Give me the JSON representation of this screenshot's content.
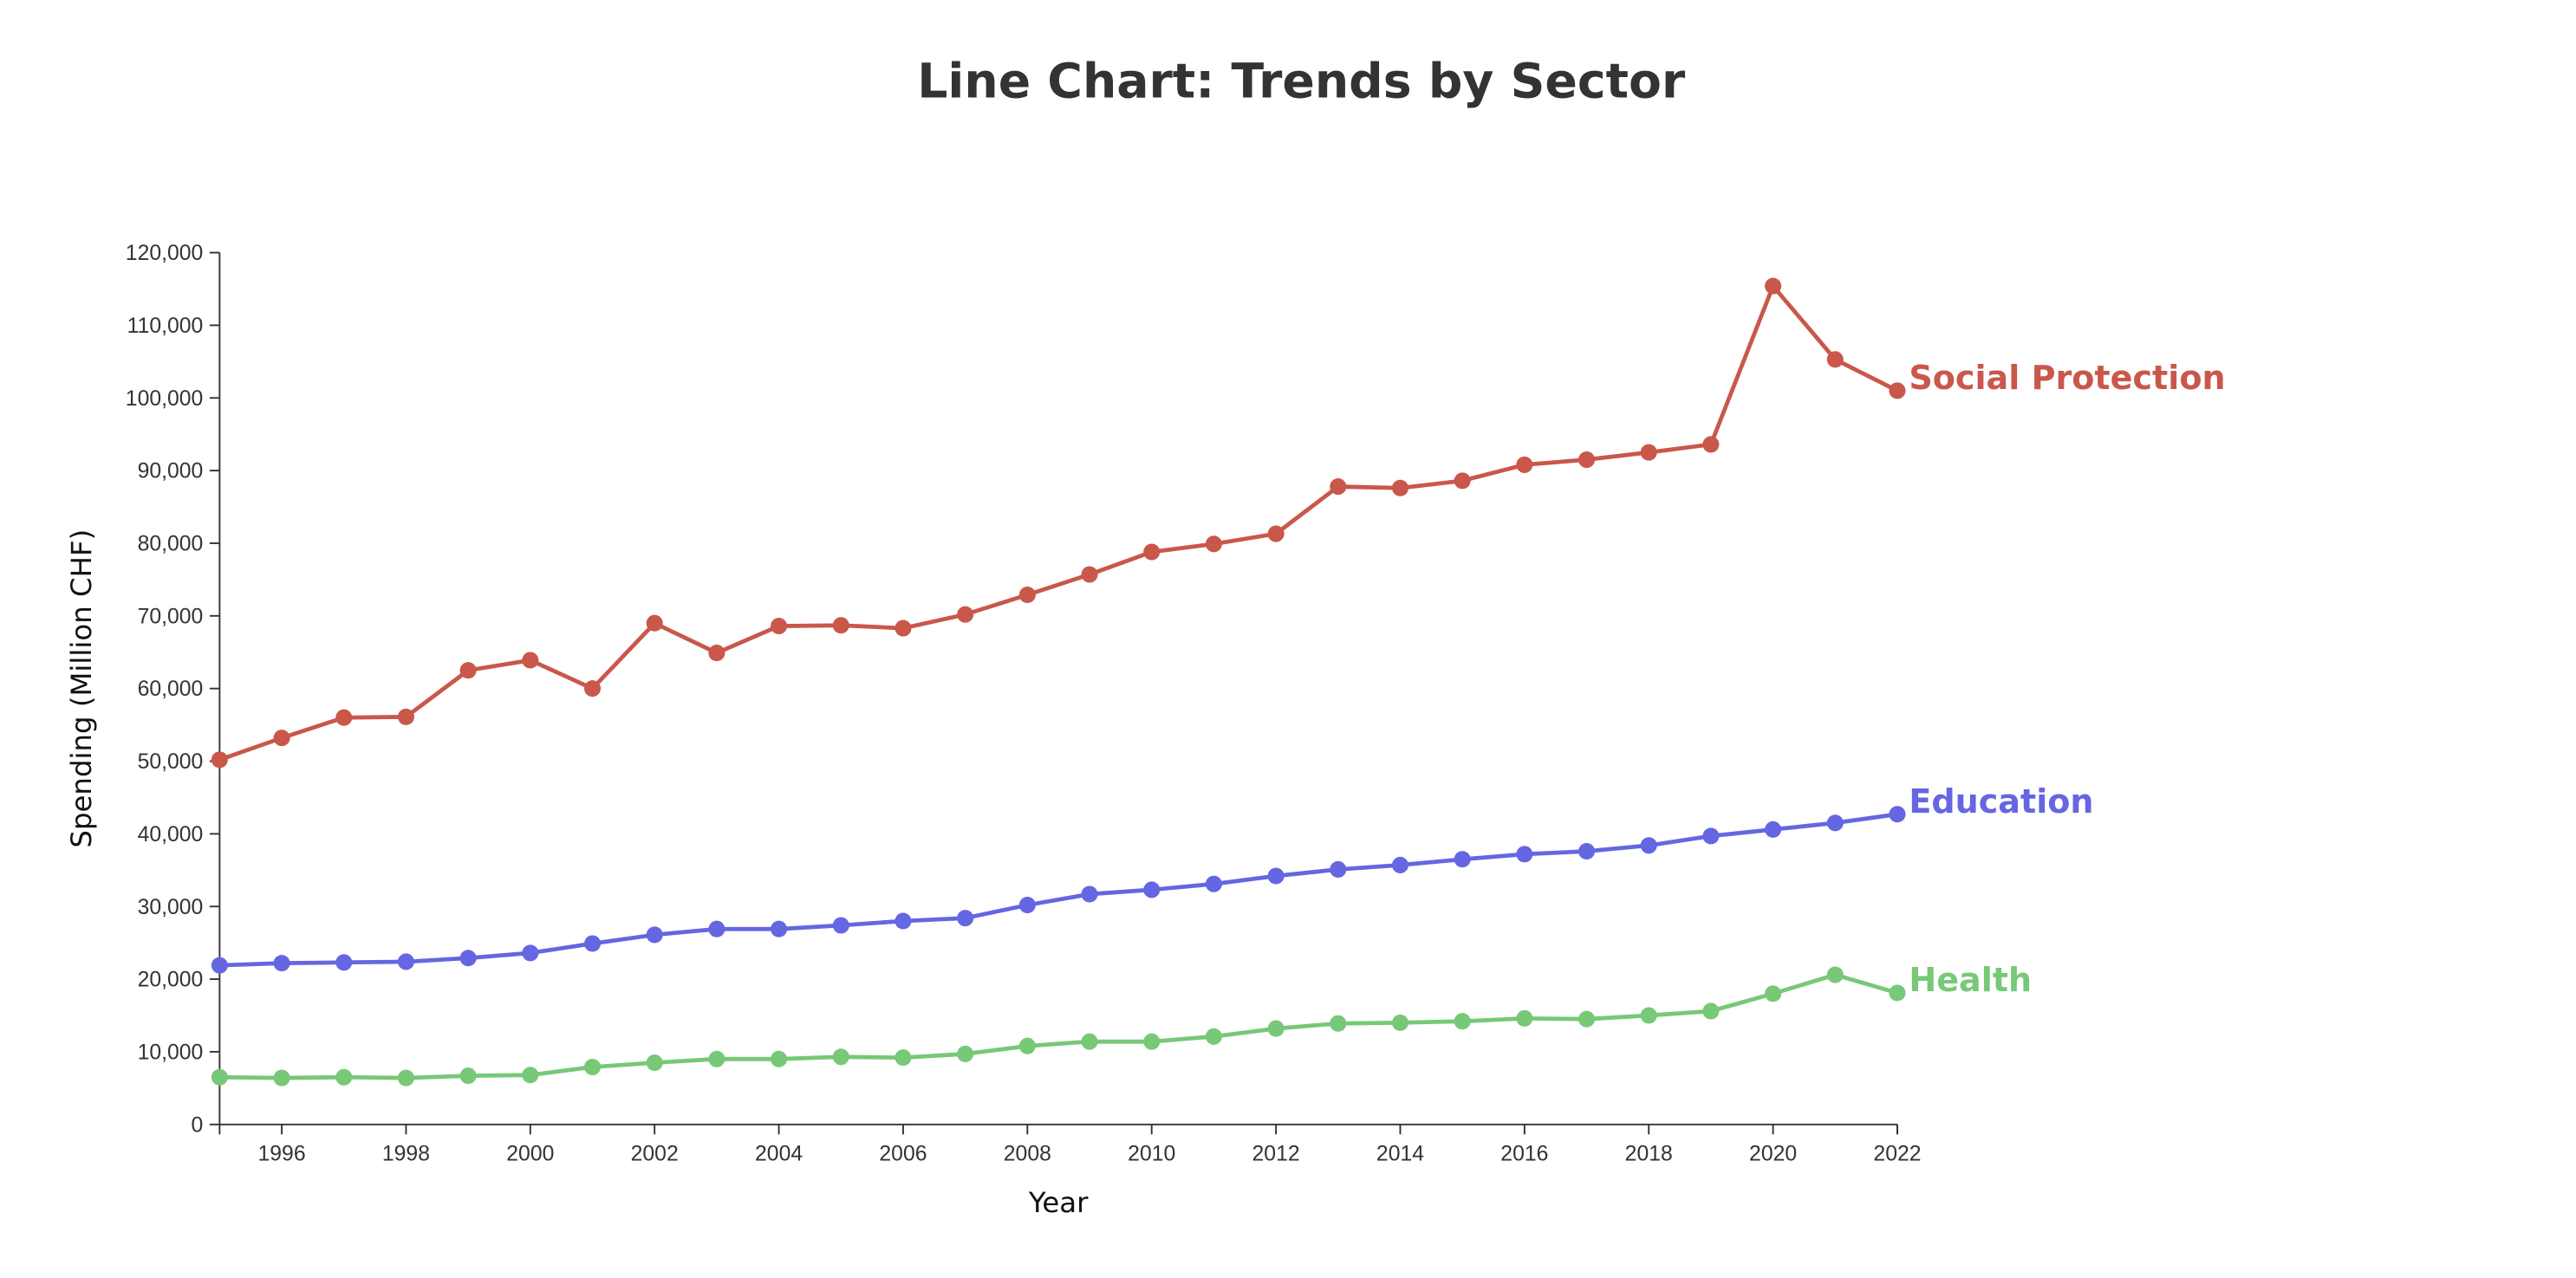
{
  "chart_data": {
    "type": "line",
    "title": "Line Chart: Trends by Sector",
    "xlabel": "Year",
    "ylabel": "Spending (Million CHF)",
    "xlim": [
      1995,
      2022
    ],
    "ylim": [
      0,
      120000
    ],
    "x": [
      1995,
      1996,
      1997,
      1998,
      1999,
      2000,
      2001,
      2002,
      2003,
      2004,
      2005,
      2006,
      2007,
      2008,
      2009,
      2010,
      2011,
      2012,
      2013,
      2014,
      2015,
      2016,
      2017,
      2018,
      2019,
      2020,
      2021,
      2022
    ],
    "x_ticks": [
      1996,
      1998,
      2000,
      2002,
      2004,
      2006,
      2008,
      2010,
      2012,
      2014,
      2016,
      2018,
      2020,
      2022
    ],
    "x_tick_labels": [
      "1996",
      "1998",
      "2000",
      "2002",
      "2004",
      "2006",
      "2008",
      "2010",
      "2012",
      "2014",
      "2016",
      "2018",
      "2020",
      "2022"
    ],
    "y_ticks": [
      0,
      10000,
      20000,
      30000,
      40000,
      50000,
      60000,
      70000,
      80000,
      90000,
      100000,
      110000,
      120000
    ],
    "y_tick_labels": [
      "0",
      "10,000",
      "20,000",
      "30,000",
      "40,000",
      "50,000",
      "60,000",
      "70,000",
      "80,000",
      "90,000",
      "100,000",
      "110,000",
      "120,000"
    ],
    "grid": false,
    "legend": "end-of-line labels",
    "series": [
      {
        "name": "Social Protection",
        "color": "#c9574a",
        "values": [
          50200,
          53200,
          56000,
          56100,
          62500,
          63900,
          60000,
          69000,
          64900,
          68600,
          68700,
          68300,
          70200,
          72900,
          75700,
          78800,
          79900,
          81300,
          87800,
          87600,
          88600,
          90800,
          91500,
          92500,
          93600,
          115400,
          105300,
          101000
        ]
      },
      {
        "name": "Education",
        "color": "#6466e2",
        "values": [
          21900,
          22200,
          22300,
          22400,
          22900,
          23600,
          24900,
          26100,
          26900,
          26900,
          27400,
          28000,
          28400,
          30200,
          31700,
          32300,
          33100,
          34200,
          35100,
          35700,
          36500,
          37200,
          37600,
          38400,
          39700,
          40600,
          41500,
          42700
        ]
      },
      {
        "name": "Health",
        "color": "#77c877",
        "values": [
          6500,
          6400,
          6500,
          6400,
          6700,
          6800,
          7900,
          8500,
          9000,
          9000,
          9300,
          9200,
          9700,
          10800,
          11400,
          11400,
          12100,
          13200,
          13900,
          14000,
          14200,
          14600,
          14500,
          15000,
          15600,
          18000,
          20600,
          18100
        ]
      }
    ]
  }
}
